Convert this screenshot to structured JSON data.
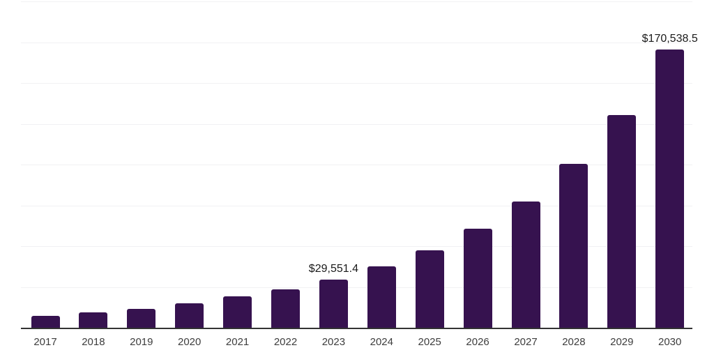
{
  "chart_data": {
    "type": "bar",
    "title": "",
    "xlabel": "",
    "ylabel": "",
    "categories": [
      "2017",
      "2018",
      "2019",
      "2020",
      "2021",
      "2022",
      "2023",
      "2024",
      "2025",
      "2026",
      "2027",
      "2028",
      "2029",
      "2030"
    ],
    "values": [
      7400,
      9300,
      11700,
      15000,
      19100,
      23600,
      29551.4,
      37500,
      47400,
      60500,
      77400,
      100400,
      130500,
      170538.5
    ],
    "data_labels": [
      {
        "category": "2023",
        "text": "$29,551.4"
      },
      {
        "category": "2030",
        "text": "$170,538.5"
      }
    ],
    "ylim": [
      0,
      200000
    ],
    "gridline_interval": 25000,
    "grid": "horizontal-only",
    "y_tick_labels_visible": false,
    "legend": "none",
    "colors": {
      "bar": "#36124F",
      "axis_line": "#333333",
      "gridline": "#F1F1F3",
      "x_tick_label": "#3D3D3D",
      "data_label": "#1A1A1A",
      "background": "#FFFFFF"
    }
  }
}
